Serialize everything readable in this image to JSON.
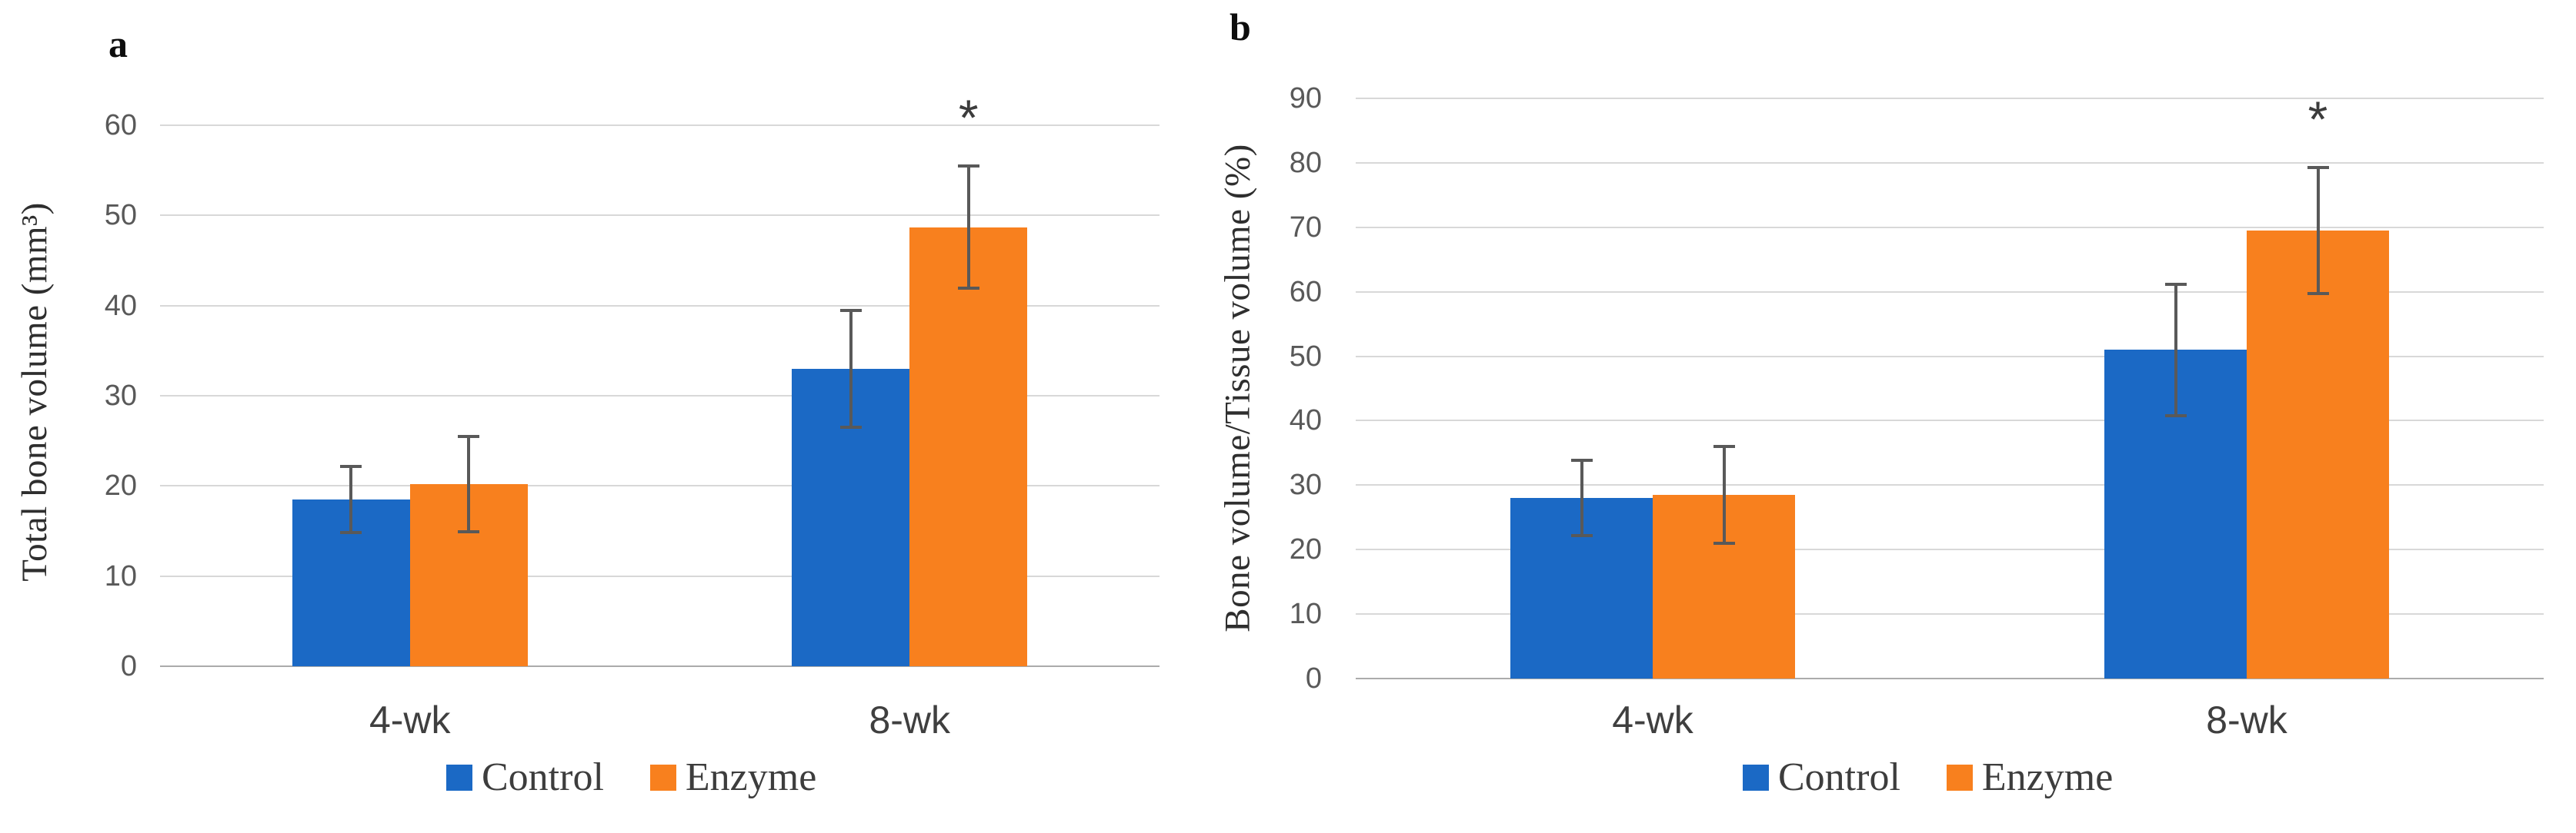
{
  "chart_data": [
    {
      "type": "bar",
      "panel_label": "a",
      "title": "",
      "xlabel": "",
      "ylabel": "Total bone volume (mm³)",
      "ylim": [
        0,
        60
      ],
      "ytick_step": 10,
      "grid": true,
      "legend_position": "bottom",
      "categories": [
        "4-wk",
        "8-wk"
      ],
      "series": [
        {
          "name": "Control",
          "color": "#1b69c5",
          "values": [
            18.5,
            33.0
          ],
          "error_plus": [
            3.7,
            6.5
          ],
          "error_minus": [
            3.7,
            6.5
          ]
        },
        {
          "name": "Enzyme",
          "color": "#f8801e",
          "values": [
            20.2,
            48.7
          ],
          "error_plus": [
            5.3,
            6.8
          ],
          "error_minus": [
            5.3,
            6.8
          ]
        }
      ],
      "significance": [
        {
          "category": "8-wk",
          "series": "Enzyme",
          "symbol": "*"
        }
      ]
    },
    {
      "type": "bar",
      "panel_label": "b",
      "title": "",
      "xlabel": "",
      "ylabel": "Bone volume/Tissue volume (%)",
      "ylim": [
        0,
        90
      ],
      "ytick_step": 10,
      "grid": true,
      "legend_position": "bottom",
      "categories": [
        "4-wk",
        "8-wk"
      ],
      "series": [
        {
          "name": "Control",
          "color": "#1b69c5",
          "values": [
            28.0,
            51.0
          ],
          "error_plus": [
            5.8,
            10.2
          ],
          "error_minus": [
            5.8,
            10.2
          ]
        },
        {
          "name": "Enzyme",
          "color": "#f8801e",
          "values": [
            28.5,
            69.5
          ],
          "error_plus": [
            7.5,
            9.8
          ],
          "error_minus": [
            7.5,
            9.8
          ]
        }
      ],
      "significance": [
        {
          "category": "8-wk",
          "series": "Enzyme",
          "symbol": "*"
        }
      ]
    }
  ],
  "error_bar_color": "#595959",
  "gridline_color": "#d8d8d8",
  "axis_line_color": "#ababab"
}
